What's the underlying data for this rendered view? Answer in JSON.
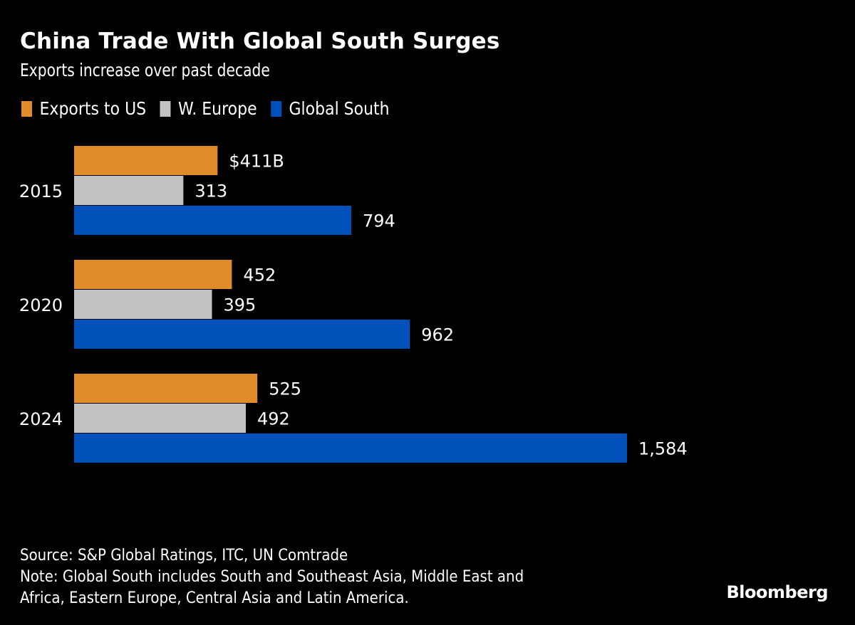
{
  "chart_data": {
    "type": "bar",
    "orientation": "horizontal",
    "title": "China Trade With Global South Surges",
    "subtitle": "Exports increase over past decade",
    "categories": [
      "2015",
      "2020",
      "2024"
    ],
    "series": [
      {
        "name": "Exports to US",
        "color": "#E08C2B",
        "values": [
          411,
          452,
          525
        ],
        "labels": [
          "$411B",
          "452",
          "525"
        ]
      },
      {
        "name": "W. Europe",
        "color": "#C2C2C2",
        "values": [
          313,
          395,
          492
        ],
        "labels": [
          "313",
          "395",
          "492"
        ]
      },
      {
        "name": "Global South",
        "color": "#0051BA",
        "values": [
          794,
          962,
          1584
        ],
        "labels": [
          "794",
          "962",
          "1,584"
        ]
      }
    ],
    "unit": "$B",
    "xlabel": "",
    "ylabel": "",
    "xlim": [
      0,
      1600
    ],
    "grid": false,
    "legend_position": "top-left"
  },
  "footer": {
    "source": "Source: S&P Global Ratings, ITC, UN Comtrade",
    "note_line1": "Note: Global South includes South and Southeast Asia, Middle East and",
    "note_line2": "Africa, Eastern Europe, Central Asia and Latin America."
  },
  "brand": "Bloomberg",
  "background": "#000000"
}
